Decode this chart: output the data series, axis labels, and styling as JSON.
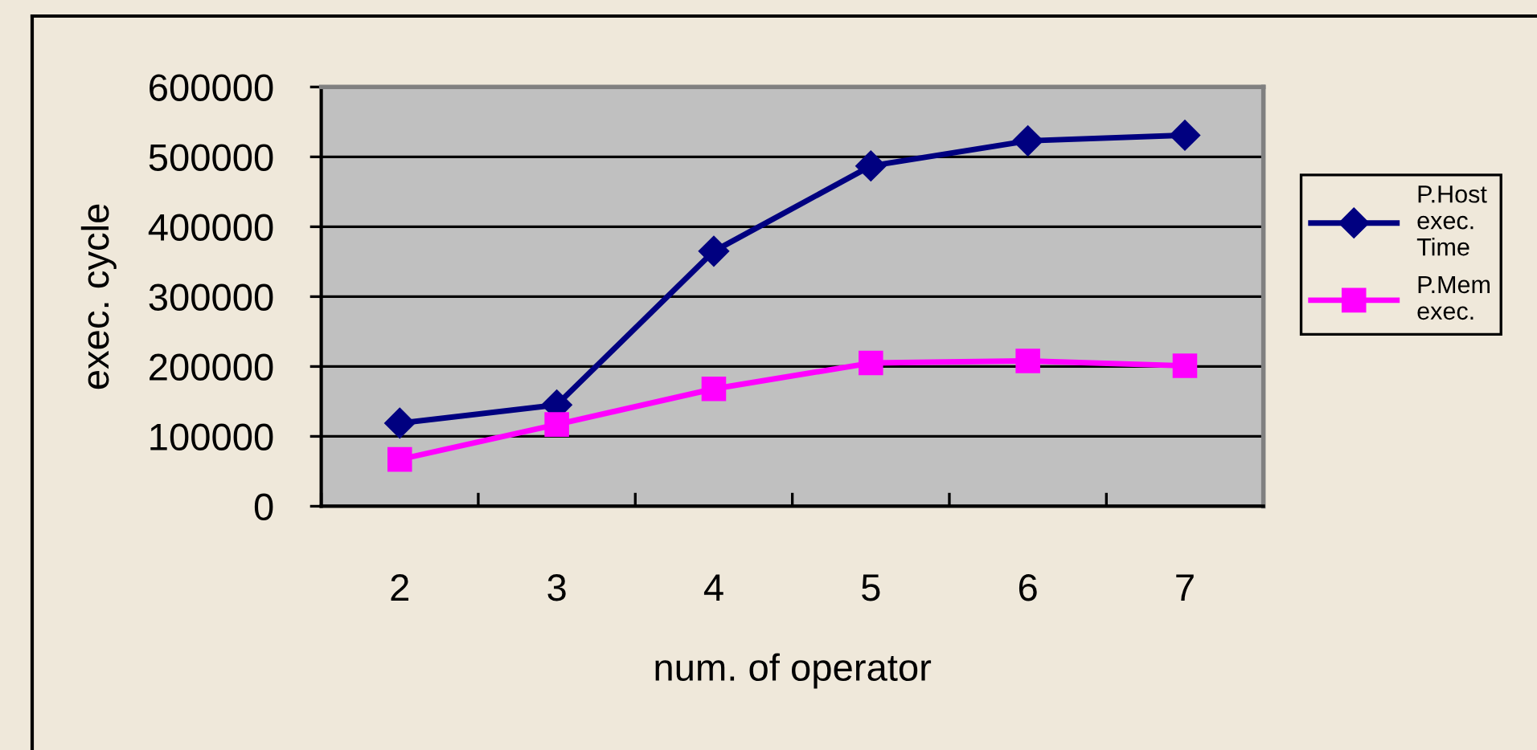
{
  "chart_data": {
    "type": "line",
    "categories": [
      "2",
      "3",
      "4",
      "5",
      "6",
      "7"
    ],
    "xlabel": "num. of operator",
    "ylabel": "exec. cycle",
    "ylim": [
      0,
      600000
    ],
    "yticks": [
      0,
      100000,
      200000,
      300000,
      400000,
      500000,
      600000
    ],
    "grid": "y",
    "legend": "right",
    "line_style": "solid",
    "series": [
      {
        "name": "P.Host exec. Time",
        "color": "#000080",
        "marker": "diamond",
        "values": [
          119000,
          145000,
          365000,
          487000,
          523000,
          531000
        ]
      },
      {
        "name": "P.Mem exec.",
        "color": "#ff00ff",
        "marker": "square",
        "values": [
          67000,
          117000,
          168000,
          205000,
          208000,
          201000
        ]
      }
    ]
  }
}
